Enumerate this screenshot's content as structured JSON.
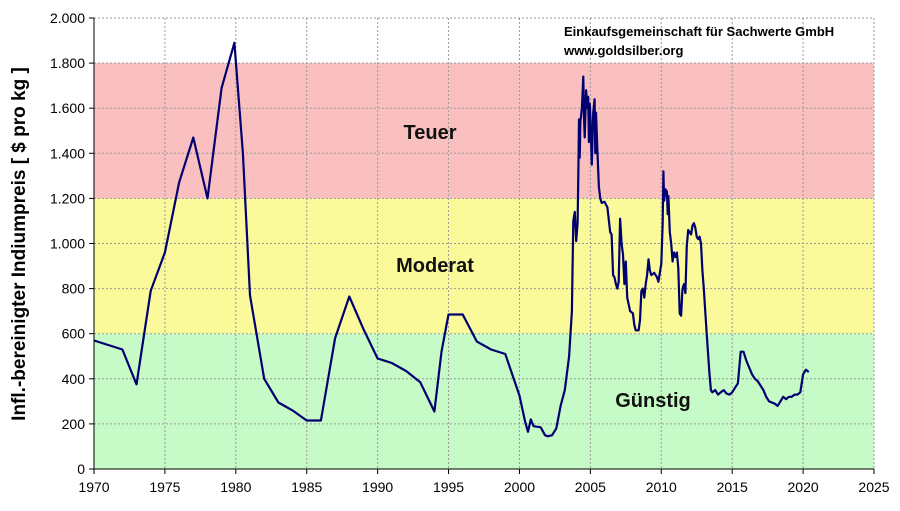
{
  "header": {
    "line1": "Einkaufsgemeinschaft für Sachwerte GmbH",
    "line2": "www.goldsilber.org"
  },
  "chart_data": {
    "type": "line",
    "title": "",
    "xlabel": "",
    "ylabel": "Infl.-bereinigter Indiumpreis [ $ pro kg ]",
    "xlim": [
      1970,
      2025
    ],
    "ylim": [
      0,
      2000
    ],
    "grid": true,
    "x_ticks": [
      1970,
      1975,
      1980,
      1985,
      1990,
      1995,
      2000,
      2005,
      2010,
      2015,
      2020,
      2025
    ],
    "x_tick_labels": [
      "1970",
      "1975",
      "1980",
      "1985",
      "1990",
      "1995",
      "2000",
      "2005",
      "2010",
      "2015",
      "2020",
      "2025"
    ],
    "y_ticks": [
      0,
      200,
      400,
      600,
      800,
      1000,
      1200,
      1400,
      1600,
      1800,
      2000
    ],
    "y_tick_labels": [
      "0",
      "200",
      "400",
      "600",
      "800",
      "1.000",
      "1.200",
      "1.400",
      "1.600",
      "1.800",
      "2.000"
    ],
    "bands": [
      {
        "label": "Günstig",
        "from": 0,
        "to": 600,
        "color": "#c6fac6"
      },
      {
        "label": "Moderat",
        "from": 600,
        "to": 1200,
        "color": "#fafa9b"
      },
      {
        "label": "Teuer",
        "from": 1200,
        "to": 1800,
        "color": "#fac0c0"
      }
    ],
    "series": [
      {
        "color": "#000070",
        "points": [
          [
            1970.0,
            570
          ],
          [
            1971.0,
            550
          ],
          [
            1972.0,
            530
          ],
          [
            1973.0,
            375
          ],
          [
            1974.0,
            790
          ],
          [
            1975.0,
            960
          ],
          [
            1976.0,
            1270
          ],
          [
            1977.0,
            1470
          ],
          [
            1978.0,
            1200
          ],
          [
            1979.0,
            1690
          ],
          [
            1979.9,
            1890
          ],
          [
            1980.5,
            1400
          ],
          [
            1981.0,
            770
          ],
          [
            1982.0,
            400
          ],
          [
            1983.0,
            295
          ],
          [
            1984.0,
            260
          ],
          [
            1985.0,
            215
          ],
          [
            1986.0,
            215
          ],
          [
            1987.0,
            580
          ],
          [
            1988.0,
            765
          ],
          [
            1989.0,
            620
          ],
          [
            1990.0,
            490
          ],
          [
            1991.0,
            470
          ],
          [
            1992.0,
            435
          ],
          [
            1993.0,
            385
          ],
          [
            1994.0,
            255
          ],
          [
            1994.5,
            520
          ],
          [
            1995.0,
            685
          ],
          [
            1996.0,
            685
          ],
          [
            1997.0,
            565
          ],
          [
            1998.0,
            530
          ],
          [
            1999.0,
            510
          ],
          [
            2000.0,
            325
          ],
          [
            2000.4,
            210
          ],
          [
            2000.6,
            165
          ],
          [
            2000.8,
            220
          ],
          [
            2001.0,
            190
          ],
          [
            2001.5,
            185
          ],
          [
            2001.8,
            150
          ],
          [
            2002.0,
            145
          ],
          [
            2002.3,
            150
          ],
          [
            2002.6,
            180
          ],
          [
            2002.9,
            280
          ],
          [
            2003.2,
            350
          ],
          [
            2003.5,
            500
          ],
          [
            2003.7,
            700
          ],
          [
            2003.8,
            1100
          ],
          [
            2003.9,
            1140
          ],
          [
            2004.0,
            1010
          ],
          [
            2004.1,
            1090
          ],
          [
            2004.15,
            1300
          ],
          [
            2004.2,
            1550
          ],
          [
            2004.25,
            1380
          ],
          [
            2004.3,
            1540
          ],
          [
            2004.4,
            1600
          ],
          [
            2004.5,
            1740
          ],
          [
            2004.55,
            1560
          ],
          [
            2004.6,
            1470
          ],
          [
            2004.7,
            1680
          ],
          [
            2004.8,
            1600
          ],
          [
            2004.85,
            1650
          ],
          [
            2004.9,
            1450
          ],
          [
            2004.95,
            1620
          ],
          [
            2005.0,
            1560
          ],
          [
            2005.1,
            1350
          ],
          [
            2005.2,
            1580
          ],
          [
            2005.3,
            1640
          ],
          [
            2005.35,
            1400
          ],
          [
            2005.4,
            1580
          ],
          [
            2005.5,
            1400
          ],
          [
            2005.6,
            1250
          ],
          [
            2005.7,
            1200
          ],
          [
            2005.8,
            1180
          ],
          [
            2006.0,
            1185
          ],
          [
            2006.2,
            1160
          ],
          [
            2006.4,
            1050
          ],
          [
            2006.5,
            1040
          ],
          [
            2006.6,
            860
          ],
          [
            2006.7,
            850
          ],
          [
            2006.8,
            820
          ],
          [
            2006.9,
            800
          ],
          [
            2007.0,
            830
          ],
          [
            2007.1,
            1110
          ],
          [
            2007.2,
            1000
          ],
          [
            2007.3,
            950
          ],
          [
            2007.4,
            820
          ],
          [
            2007.5,
            920
          ],
          [
            2007.6,
            760
          ],
          [
            2007.7,
            730
          ],
          [
            2007.8,
            700
          ],
          [
            2008.0,
            690
          ],
          [
            2008.1,
            640
          ],
          [
            2008.2,
            615
          ],
          [
            2008.4,
            615
          ],
          [
            2008.5,
            660
          ],
          [
            2008.6,
            790
          ],
          [
            2008.7,
            800
          ],
          [
            2008.8,
            760
          ],
          [
            2008.9,
            820
          ],
          [
            2009.0,
            860
          ],
          [
            2009.1,
            930
          ],
          [
            2009.2,
            880
          ],
          [
            2009.3,
            860
          ],
          [
            2009.5,
            870
          ],
          [
            2009.7,
            850
          ],
          [
            2009.8,
            830
          ],
          [
            2010.0,
            910
          ],
          [
            2010.1,
            1090
          ],
          [
            2010.15,
            1320
          ],
          [
            2010.2,
            1190
          ],
          [
            2010.3,
            1240
          ],
          [
            2010.4,
            1230
          ],
          [
            2010.45,
            1130
          ],
          [
            2010.5,
            1210
          ],
          [
            2010.6,
            1050
          ],
          [
            2010.7,
            1000
          ],
          [
            2010.8,
            920
          ],
          [
            2010.9,
            960
          ],
          [
            2011.0,
            940
          ],
          [
            2011.1,
            960
          ],
          [
            2011.2,
            890
          ],
          [
            2011.3,
            690
          ],
          [
            2011.4,
            680
          ],
          [
            2011.5,
            800
          ],
          [
            2011.6,
            820
          ],
          [
            2011.7,
            780
          ],
          [
            2011.8,
            990
          ],
          [
            2011.9,
            1060
          ],
          [
            2012.0,
            1050
          ],
          [
            2012.1,
            1040
          ],
          [
            2012.2,
            1080
          ],
          [
            2012.3,
            1090
          ],
          [
            2012.4,
            1070
          ],
          [
            2012.5,
            1030
          ],
          [
            2012.6,
            1020
          ],
          [
            2012.7,
            1030
          ],
          [
            2012.8,
            1000
          ],
          [
            2012.9,
            880
          ],
          [
            2013.0,
            800
          ],
          [
            2013.2,
            600
          ],
          [
            2013.4,
            420
          ],
          [
            2013.5,
            350
          ],
          [
            2013.6,
            340
          ],
          [
            2013.8,
            350
          ],
          [
            2014.0,
            330
          ],
          [
            2014.2,
            340
          ],
          [
            2014.4,
            350
          ],
          [
            2014.6,
            335
          ],
          [
            2014.8,
            330
          ],
          [
            2015.0,
            340
          ],
          [
            2015.2,
            360
          ],
          [
            2015.4,
            380
          ],
          [
            2015.6,
            520
          ],
          [
            2015.8,
            520
          ],
          [
            2016.0,
            480
          ],
          [
            2016.2,
            450
          ],
          [
            2016.4,
            420
          ],
          [
            2016.6,
            400
          ],
          [
            2016.8,
            390
          ],
          [
            2017.0,
            370
          ],
          [
            2017.2,
            350
          ],
          [
            2017.4,
            320
          ],
          [
            2017.6,
            300
          ],
          [
            2017.8,
            295
          ],
          [
            2018.0,
            290
          ],
          [
            2018.2,
            280
          ],
          [
            2018.4,
            300
          ],
          [
            2018.6,
            320
          ],
          [
            2018.8,
            310
          ],
          [
            2019.0,
            320
          ],
          [
            2019.2,
            320
          ],
          [
            2019.4,
            330
          ],
          [
            2019.6,
            330
          ],
          [
            2019.8,
            340
          ],
          [
            2020.0,
            420
          ],
          [
            2020.2,
            440
          ],
          [
            2020.4,
            430
          ]
        ]
      }
    ]
  }
}
